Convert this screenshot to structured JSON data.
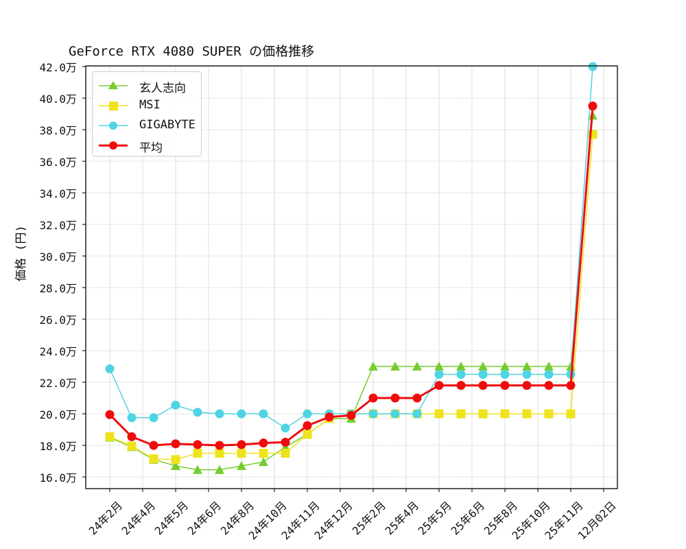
{
  "chart_data": {
    "type": "line",
    "title": "GeForce RTX 4080 SUPER の価格推移",
    "xlabel": "",
    "ylabel": "価格 (円)",
    "ylim": [
      16.0,
      42.0
    ],
    "y_unit": "万",
    "grid": true,
    "legend_position": "upper left",
    "x_tick_labels": [
      "24年2月",
      "24年4月",
      "24年5月",
      "24年6月",
      "24年8月",
      "24年10月",
      "24年11月",
      "24年12月",
      "25年2月",
      "25年4月",
      "25年5月",
      "25年6月",
      "25年8月",
      "25年10月",
      "25年11月",
      "12月02日"
    ],
    "y_tick_labels": [
      "16.0万",
      "18.0万",
      "20.0万",
      "22.0万",
      "24.0万",
      "26.0万",
      "28.0万",
      "30.0万",
      "32.0万",
      "34.0万",
      "36.0万",
      "38.0万",
      "40.0万",
      "42.0万"
    ],
    "y_ticks": [
      16,
      18,
      20,
      22,
      24,
      26,
      28,
      30,
      32,
      34,
      36,
      38,
      40,
      42
    ],
    "num_points": 23,
    "series": [
      {
        "name": "玄人志向",
        "color": "#77cc2e",
        "marker": "triangle",
        "line_width": 1.5,
        "values": [
          18.5,
          17.9,
          17.1,
          16.7,
          16.45,
          16.45,
          16.7,
          16.95,
          17.9,
          18.7,
          19.7,
          19.7,
          23.0,
          23.0,
          23.0,
          23.0,
          23.0,
          23.0,
          23.0,
          23.0,
          23.0,
          23.0,
          38.9
        ]
      },
      {
        "name": "MSI",
        "color": "#eee31c",
        "marker": "square",
        "line_width": 1.5,
        "values": [
          18.55,
          17.95,
          17.15,
          17.1,
          17.5,
          17.5,
          17.5,
          17.5,
          17.5,
          18.7,
          19.7,
          20.0,
          20.0,
          20.0,
          20.0,
          20.0,
          20.0,
          20.0,
          20.0,
          20.0,
          20.0,
          20.0,
          37.7
        ]
      },
      {
        "name": "GIGABYTE",
        "color": "#4fd4e3",
        "marker": "circle",
        "line_width": 1.5,
        "values": [
          22.85,
          19.75,
          19.75,
          20.55,
          20.1,
          20.0,
          20.0,
          20.0,
          19.1,
          20.0,
          20.0,
          20.0,
          20.0,
          20.0,
          20.0,
          22.5,
          22.5,
          22.5,
          22.5,
          22.5,
          22.5,
          22.5,
          42.0
        ]
      },
      {
        "name": "平均",
        "color": "#f00c0c",
        "marker": "circle",
        "line_width": 3,
        "values": [
          19.95,
          18.55,
          18.0,
          18.1,
          18.05,
          18.0,
          18.05,
          18.15,
          18.2,
          19.25,
          19.8,
          19.9,
          21.0,
          21.0,
          21.0,
          21.8,
          21.8,
          21.8,
          21.8,
          21.8,
          21.8,
          21.8,
          39.5
        ]
      }
    ]
  }
}
